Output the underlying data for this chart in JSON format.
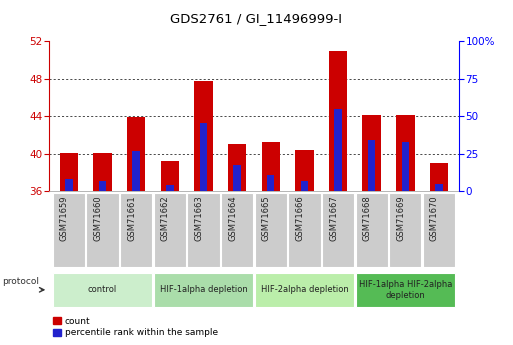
{
  "title": "GDS2761 / GI_11496999-I",
  "samples": [
    "GSM71659",
    "GSM71660",
    "GSM71661",
    "GSM71662",
    "GSM71663",
    "GSM71664",
    "GSM71665",
    "GSM71666",
    "GSM71667",
    "GSM71668",
    "GSM71669",
    "GSM71670"
  ],
  "count_values": [
    40.1,
    40.1,
    43.9,
    39.2,
    47.8,
    41.1,
    41.3,
    40.4,
    51.0,
    44.2,
    44.2,
    39.0
  ],
  "percentile_values": [
    37.3,
    37.1,
    40.3,
    36.7,
    43.3,
    38.8,
    37.8,
    37.1,
    44.8,
    41.5,
    41.3,
    36.8
  ],
  "y_min": 36,
  "y_max": 52,
  "y_ticks": [
    36,
    40,
    44,
    48,
    52
  ],
  "y2_ticks": [
    0,
    25,
    50,
    75,
    100
  ],
  "count_color": "#cc0000",
  "percentile_color": "#2222cc",
  "protocol_groups": [
    {
      "label": "control",
      "start": 0,
      "end": 2,
      "color": "#cceecc"
    },
    {
      "label": "HIF-1alpha depletion",
      "start": 3,
      "end": 5,
      "color": "#aaddaa"
    },
    {
      "label": "HIF-2alpha depletion",
      "start": 6,
      "end": 8,
      "color": "#bbeeaa"
    },
    {
      "label": "HIF-1alpha HIF-2alpha\ndepletion",
      "start": 9,
      "end": 11,
      "color": "#55bb55"
    }
  ],
  "legend_count_label": "count",
  "legend_percentile_label": "percentile rank within the sample"
}
